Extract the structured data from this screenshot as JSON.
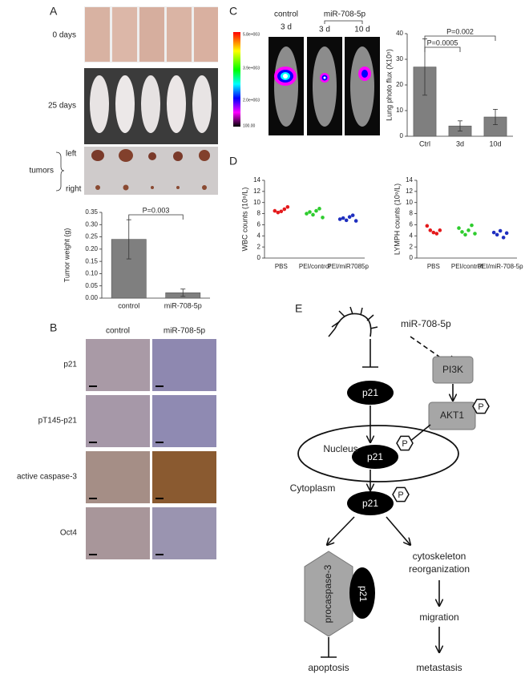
{
  "panels": [
    "A",
    "B",
    "C",
    "D",
    "E"
  ],
  "panel_a": {
    "photo_labels": [
      "0 days",
      "25 days"
    ],
    "tumor_label": "tumors",
    "tumor_rows": [
      "left",
      "right"
    ]
  },
  "panel_b": {
    "columns": [
      "control",
      "miR-708-5p"
    ],
    "rows": [
      "p21",
      "pT145-p21",
      "active caspase-3",
      "Oct4"
    ]
  },
  "panel_c": {
    "groups": [
      "control",
      "miR-708-5p"
    ],
    "times": [
      "3 d",
      "3 d",
      "10 d"
    ],
    "colorbar_labels": [
      "5.8e+003",
      "3.9e+003",
      "2.0e+003",
      "100.00"
    ]
  },
  "chart_data": [
    {
      "type": "bar",
      "y_label": "Tumor weight (g)",
      "categories": [
        "control",
        "miR-708-5p"
      ],
      "values": [
        0.24,
        0.022
      ],
      "errors": [
        0.08,
        0.015
      ],
      "color": "#7f7f7f",
      "ylim": [
        0,
        0.35
      ],
      "yticks": [
        {
          "value": 0,
          "label": "0.00"
        },
        0.05,
        {
          "value": 0.1,
          "label": "0.10"
        },
        0.15,
        {
          "value": 0.2,
          "label": "0.20"
        },
        0.25,
        {
          "value": 0.3,
          "label": "0.30"
        },
        0.35
      ],
      "annotations": [
        "P=0.003"
      ]
    },
    {
      "type": "bar",
      "y_label": "Lung photo flux (X10⁵)",
      "categories": [
        "Ctrl",
        "3d",
        "10d"
      ],
      "values": [
        27,
        4,
        7.5
      ],
      "errors": [
        11,
        2,
        3
      ],
      "color": "#7f7f7f",
      "ylim": [
        0,
        40
      ],
      "yticks": [
        0,
        10,
        20,
        30,
        40
      ],
      "annotations": [
        "P=0.0005",
        "P=0.002"
      ]
    },
    {
      "type": "strip",
      "y_label": "WBC counts (10⁹/L)",
      "categories": [
        "PBS",
        "PEI/control",
        "PEI/miR7085p"
      ],
      "colors": [
        "#e41a1c",
        "#2ecc2e",
        "#1f2fbf"
      ],
      "values": [
        [
          8.5,
          8.2,
          8.4,
          8.8,
          9.2
        ],
        [
          8.0,
          8.3,
          7.8,
          8.5,
          8.9,
          7.3
        ],
        [
          7.0,
          7.2,
          6.8,
          7.4,
          7.7,
          6.7
        ]
      ],
      "ylim": [
        0,
        14
      ],
      "yticks": [
        0,
        2,
        4,
        6,
        8,
        10,
        12,
        14
      ]
    },
    {
      "type": "strip",
      "y_label": "LYMPH counts (10⁹/L)",
      "categories": [
        "PBS",
        "PEI/control",
        "PEI/miR-708-5p"
      ],
      "colors": [
        "#e41a1c",
        "#2ecc2e",
        "#1f2fbf"
      ],
      "values": [
        [
          5.8,
          5.0,
          4.6,
          4.4,
          5.0
        ],
        [
          5.4,
          4.7,
          4.2,
          5.0,
          5.9,
          4.4
        ],
        [
          4.6,
          4.2,
          4.9,
          3.7,
          4.5
        ]
      ],
      "ylim": [
        0,
        14
      ],
      "yticks": [
        0,
        2,
        4,
        6,
        8,
        10,
        12,
        14
      ]
    }
  ],
  "diagram": {
    "mirna": "miR-708-5p",
    "kinase_1": "PI3K",
    "kinase_2": "AKT1",
    "p21_labels": [
      "p21",
      "p21",
      "p21",
      "p21"
    ],
    "phospho": [
      "P",
      "P",
      "P"
    ],
    "nucleus": "Nucleus",
    "cytoplasm": "Cytoplasm",
    "procaspase": "procaspase-3",
    "apoptosis": "apoptosis",
    "cytoskeleton": [
      "cytoskeleton",
      "reorganization"
    ],
    "migration": "migration",
    "metastasis": "metastasis"
  }
}
